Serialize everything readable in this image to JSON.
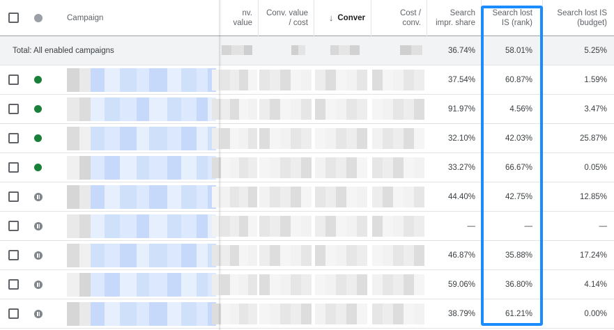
{
  "header": {
    "campaign_label": "Campaign",
    "conv_value_label": "nv. value",
    "conv_value_cost_line1": "Conv. value",
    "conv_value_cost_line2": "/ cost",
    "conversions_label": "Conver",
    "cost_conv_line1": "Cost /",
    "cost_conv_line2": "conv.",
    "search_impr_line1": "Search",
    "search_impr_line2": "impr. share",
    "lost_rank_line1": "Search lost",
    "lost_rank_line2": "IS (rank)",
    "lost_budget_line1": "Search lost IS",
    "lost_budget_line2": "(budget)"
  },
  "total": {
    "label": "Total: All enabled campaigns",
    "search_impr_share": "36.74%",
    "search_lost_rank": "58.01%",
    "search_lost_budget": "5.25%"
  },
  "rows": [
    {
      "status": "enabled",
      "search_impr_share": "37.54%",
      "search_lost_rank": "60.87%",
      "search_lost_budget": "1.59%"
    },
    {
      "status": "enabled",
      "search_impr_share": "91.97%",
      "search_lost_rank": "4.56%",
      "search_lost_budget": "3.47%"
    },
    {
      "status": "enabled",
      "search_impr_share": "32.10%",
      "search_lost_rank": "42.03%",
      "search_lost_budget": "25.87%"
    },
    {
      "status": "enabled",
      "search_impr_share": "33.27%",
      "search_lost_rank": "66.67%",
      "search_lost_budget": "0.05%"
    },
    {
      "status": "paused",
      "search_impr_share": "44.40%",
      "search_lost_rank": "42.75%",
      "search_lost_budget": "12.85%"
    },
    {
      "status": "paused",
      "search_impr_share": "—",
      "search_lost_rank": "—",
      "search_lost_budget": "—"
    },
    {
      "status": "paused",
      "search_impr_share": "46.87%",
      "search_lost_rank": "35.88%",
      "search_lost_budget": "17.24%"
    },
    {
      "status": "paused",
      "search_impr_share": "59.06%",
      "search_lost_rank": "36.80%",
      "search_lost_budget": "4.14%"
    },
    {
      "status": "paused",
      "search_impr_share": "38.79%",
      "search_lost_rank": "61.21%",
      "search_lost_budget": "0.00%"
    }
  ],
  "colors": {
    "highlight": "#1a8cff",
    "enabled": "#188038",
    "paused": "#80868b"
  }
}
